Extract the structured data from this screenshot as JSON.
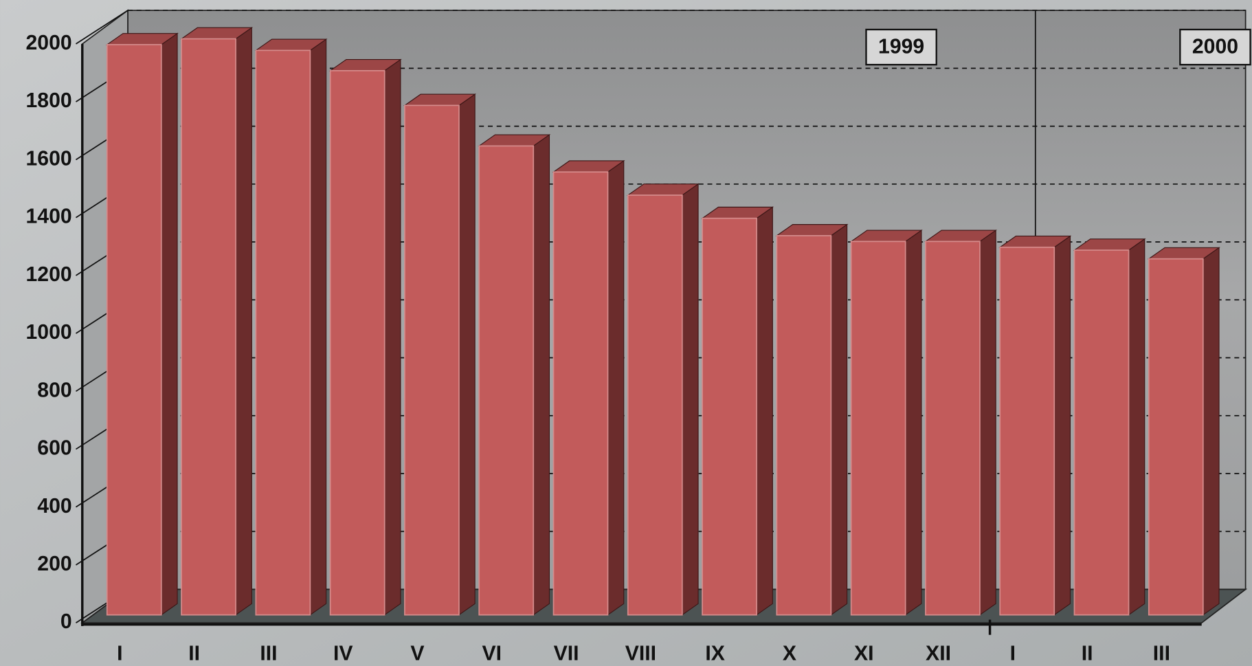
{
  "chart_data": {
    "type": "bar3d",
    "groups": [
      {
        "label": "1999",
        "categories": [
          "I",
          "II",
          "III",
          "IV",
          "V",
          "VI",
          "VII",
          "VIII",
          "IX",
          "X",
          "XI",
          "XII"
        ]
      },
      {
        "label": "2000",
        "categories": [
          "I",
          "II",
          "III"
        ]
      }
    ],
    "values": [
      1970,
      1990,
      1950,
      1880,
      1760,
      1620,
      1530,
      1450,
      1370,
      1310,
      1290,
      1290,
      1270,
      1260,
      1230
    ],
    "color": "#c25b5b",
    "ylim": [
      0,
      2000
    ],
    "yticks": [
      0,
      200,
      400,
      600,
      800,
      1000,
      1200,
      1400,
      1600,
      1800,
      2000
    ],
    "grid": true
  }
}
